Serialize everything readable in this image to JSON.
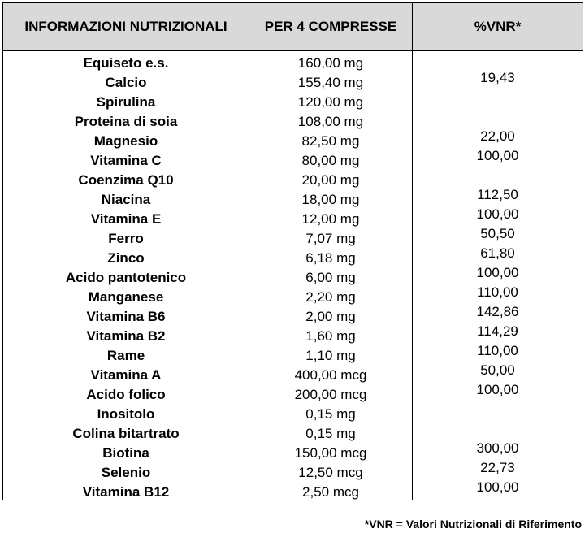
{
  "header": {
    "col1": "INFORMAZIONI NUTRIZIONALI",
    "col2": "PER 4 COMPRESSE",
    "col3": "%VNR*"
  },
  "rows": [
    {
      "name": "Equiseto e.s.",
      "qty": "160,00 mg",
      "vnr": ""
    },
    {
      "name": "Calcio",
      "qty": "155,40 mg",
      "vnr": "19,43"
    },
    {
      "name": "Spirulina",
      "qty": "120,00 mg",
      "vnr": ""
    },
    {
      "name": "Proteina di soia",
      "qty": "108,00 mg",
      "vnr": ""
    },
    {
      "name": "Magnesio",
      "qty": "82,50 mg",
      "vnr": "22,00"
    },
    {
      "name": "Vitamina C",
      "qty": "80,00 mg",
      "vnr": "100,00"
    },
    {
      "name": "Coenzima Q10",
      "qty": "20,00 mg",
      "vnr": ""
    },
    {
      "name": "Niacina",
      "qty": "18,00 mg",
      "vnr": "112,50"
    },
    {
      "name": "Vitamina E",
      "qty": "12,00 mg",
      "vnr": "100,00"
    },
    {
      "name": "Ferro",
      "qty": "7,07 mg",
      "vnr": "50,50"
    },
    {
      "name": "Zinco",
      "qty": "6,18 mg",
      "vnr": "61,80"
    },
    {
      "name": "Acido pantotenico",
      "qty": "6,00 mg",
      "vnr": "100,00"
    },
    {
      "name": "Manganese",
      "qty": "2,20 mg",
      "vnr": "110,00"
    },
    {
      "name": "Vitamina B6",
      "qty": "2,00 mg",
      "vnr": "142,86"
    },
    {
      "name": "Vitamina B2",
      "qty": "1,60 mg",
      "vnr": "114,29"
    },
    {
      "name": "Rame",
      "qty": "1,10 mg",
      "vnr": "110,00"
    },
    {
      "name": "Vitamina A",
      "qty": "400,00 mcg",
      "vnr": "50,00"
    },
    {
      "name": "Acido folico",
      "qty": "200,00 mcg",
      "vnr": "100,00"
    },
    {
      "name": "Inositolo",
      "qty": "0,15 mg",
      "vnr": ""
    },
    {
      "name": "Colina bitartrato",
      "qty": "0,15 mg",
      "vnr": ""
    },
    {
      "name": "Biotina",
      "qty": "150,00 mcg",
      "vnr": "300,00"
    },
    {
      "name": "Selenio",
      "qty": "12,50 mcg",
      "vnr": "22,73"
    },
    {
      "name": "Vitamina B12",
      "qty": "2,50 mcg",
      "vnr": "100,00"
    }
  ],
  "footnote": "*VNR = Valori Nutrizionali di Riferimento"
}
